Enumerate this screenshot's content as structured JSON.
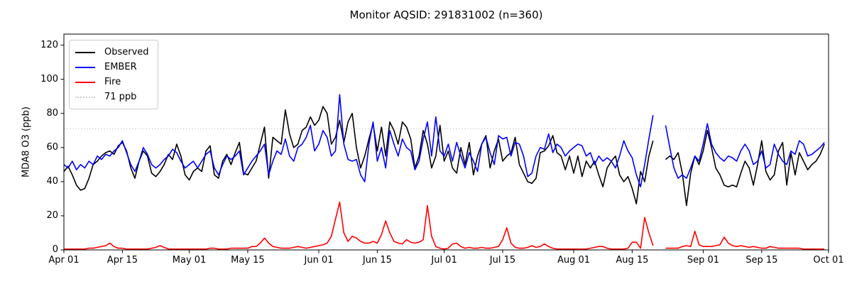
{
  "title": "Monitor AQSID: 291831002 (n=360)",
  "chart_data": {
    "type": "line",
    "title": "Monitor AQSID: 291831002 (n=360)",
    "xlabel": "",
    "ylabel": "MDA8 O3 (ppb)",
    "ylim": [
      0,
      126.5
    ],
    "x_range_days": 183,
    "grid": false,
    "legend_position": "upper left",
    "y_ticks": [
      0,
      20,
      40,
      60,
      80,
      100,
      120
    ],
    "x_ticks": [
      {
        "day": 0,
        "label": "Apr 01"
      },
      {
        "day": 14,
        "label": "Apr 15"
      },
      {
        "day": 30,
        "label": "May 01"
      },
      {
        "day": 44,
        "label": "May 15"
      },
      {
        "day": 61,
        "label": "Jun 01"
      },
      {
        "day": 75,
        "label": "Jun 15"
      },
      {
        "day": 91,
        "label": "Jul 01"
      },
      {
        "day": 105,
        "label": "Jul 15"
      },
      {
        "day": 122,
        "label": "Aug 01"
      },
      {
        "day": 136,
        "label": "Aug 15"
      },
      {
        "day": 153,
        "label": "Sep 01"
      },
      {
        "day": 167,
        "label": "Sep 15"
      },
      {
        "day": 183,
        "label": "Oct 01"
      }
    ],
    "threshold": {
      "value": 71,
      "label": "71 ppb",
      "color": "#cfcfcf",
      "style": "dotted"
    },
    "legend": [
      "Observed",
      "EMBER",
      "Fire",
      "71 ppb"
    ],
    "series": [
      {
        "name": "Observed",
        "color": "#000000",
        "values": [
          46,
          49,
          44,
          38,
          35,
          36,
          42,
          50,
          52,
          55,
          57,
          58,
          56,
          61,
          63,
          58,
          48,
          42,
          52,
          58,
          55,
          45,
          43,
          46,
          50,
          56,
          53,
          62,
          55,
          44,
          41,
          46,
          48,
          46,
          58,
          61,
          44,
          42,
          52,
          56,
          50,
          57,
          63,
          45,
          44,
          48,
          52,
          62,
          72,
          42,
          66,
          64,
          62,
          82,
          68,
          60,
          62,
          70,
          72,
          78,
          73,
          76,
          84,
          80,
          62,
          66,
          76,
          63,
          75,
          80,
          60,
          48,
          55,
          65,
          74,
          58,
          72,
          55,
          75,
          70,
          62,
          75,
          72,
          65,
          48,
          55,
          70,
          62,
          48,
          55,
          73,
          52,
          58,
          48,
          45,
          60,
          50,
          63,
          44,
          55,
          62,
          67,
          48,
          58,
          65,
          52,
          55,
          57,
          66,
          50,
          45,
          40,
          39,
          42,
          57,
          58,
          61,
          67,
          57,
          55,
          47,
          55,
          45,
          55,
          43,
          52,
          48,
          52,
          44,
          37,
          48,
          52,
          55,
          44,
          40,
          43,
          36,
          27,
          46,
          40,
          55,
          64,
          null,
          null,
          53,
          55,
          53,
          57,
          45,
          26,
          45,
          55,
          50,
          58,
          70,
          60,
          48,
          44,
          38,
          37,
          38,
          37,
          45,
          52,
          48,
          38,
          50,
          64,
          46,
          41,
          44,
          58,
          63,
          38,
          57,
          44,
          57,
          52,
          47,
          50,
          52,
          56,
          62
        ]
      },
      {
        "name": "EMBER",
        "color": "#0000ff",
        "values": [
          50,
          48,
          52,
          47,
          50,
          48,
          52,
          50,
          55,
          53,
          56,
          55,
          58,
          60,
          64,
          57,
          50,
          46,
          52,
          60,
          56,
          50,
          48,
          50,
          53,
          55,
          59,
          57,
          52,
          48,
          50,
          52,
          48,
          52,
          56,
          58,
          48,
          44,
          50,
          55,
          53,
          55,
          58,
          44,
          48,
          52,
          55,
          58,
          62,
          44,
          52,
          58,
          56,
          65,
          55,
          52,
          60,
          62,
          66,
          73,
          58,
          62,
          70,
          66,
          55,
          58,
          91,
          62,
          53,
          52,
          53,
          44,
          40,
          62,
          75,
          52,
          60,
          48,
          70,
          62,
          55,
          65,
          60,
          58,
          47,
          52,
          65,
          75,
          55,
          78,
          58,
          55,
          62,
          52,
          63,
          55,
          48,
          57,
          52,
          46,
          62,
          66,
          57,
          50,
          67,
          65,
          66,
          55,
          63,
          62,
          55,
          43,
          45,
          55,
          60,
          59,
          68,
          57,
          62,
          60,
          55,
          58,
          60,
          62,
          61,
          55,
          57,
          50,
          55,
          52,
          54,
          52,
          48,
          55,
          64,
          58,
          54,
          44,
          37,
          50,
          65,
          79,
          null,
          null,
          73,
          60,
          48,
          42,
          44,
          42,
          48,
          55,
          52,
          62,
          74,
          62,
          57,
          54,
          52,
          55,
          54,
          52,
          58,
          62,
          58,
          50,
          52,
          58,
          48,
          50,
          62,
          56,
          52,
          50,
          58,
          56,
          64,
          62,
          55,
          56,
          58,
          60,
          63
        ]
      },
      {
        "name": "Fire",
        "color": "#ff0000",
        "values": [
          0.5,
          0.5,
          0.5,
          0.5,
          0.5,
          0.5,
          1,
          1,
          1.5,
          2,
          2.5,
          4,
          2,
          1,
          1,
          0.5,
          0.5,
          0.5,
          0.5,
          0.5,
          0.5,
          1,
          1.5,
          2.5,
          1.5,
          0.5,
          0.5,
          0.5,
          0.5,
          0.5,
          0.5,
          0.5,
          0.5,
          0.5,
          0.5,
          1,
          1,
          0.5,
          0.5,
          0.5,
          1,
          1,
          1,
          1,
          1,
          2,
          2,
          4,
          7,
          4,
          2,
          1.5,
          1,
          1,
          1,
          1.5,
          2,
          1.5,
          1,
          1.5,
          2,
          2.5,
          3,
          4,
          8,
          18,
          28,
          10,
          5,
          8,
          7,
          5,
          4,
          4,
          5,
          4,
          9,
          17,
          10,
          5,
          4,
          3.5,
          6,
          4.5,
          4,
          4.5,
          6,
          26,
          8,
          2,
          1,
          0.5,
          1,
          3.5,
          4,
          2,
          1,
          1.5,
          1,
          1,
          1.5,
          1,
          1,
          1.5,
          2,
          6,
          13,
          4,
          1.5,
          1,
          1,
          1.5,
          2.5,
          1.5,
          2,
          3.5,
          2,
          1,
          0.5,
          0.5,
          0.5,
          0.5,
          0.5,
          0.5,
          0.5,
          0.5,
          1,
          1.5,
          2,
          2,
          1,
          0.5,
          0.5,
          0.5,
          0.5,
          1,
          4.5,
          4.5,
          1,
          19,
          10,
          2.5,
          null,
          null,
          1,
          1,
          1,
          1,
          2,
          2.5,
          2,
          11,
          3,
          2,
          2,
          2,
          2.5,
          3,
          7.5,
          4,
          2.5,
          2,
          2.5,
          2,
          1.5,
          2,
          1.5,
          1,
          1,
          2,
          1.5,
          1,
          1,
          1,
          1,
          1,
          1,
          0.5,
          0.5,
          0.5,
          0.5,
          0.5,
          0.5
        ]
      }
    ]
  }
}
